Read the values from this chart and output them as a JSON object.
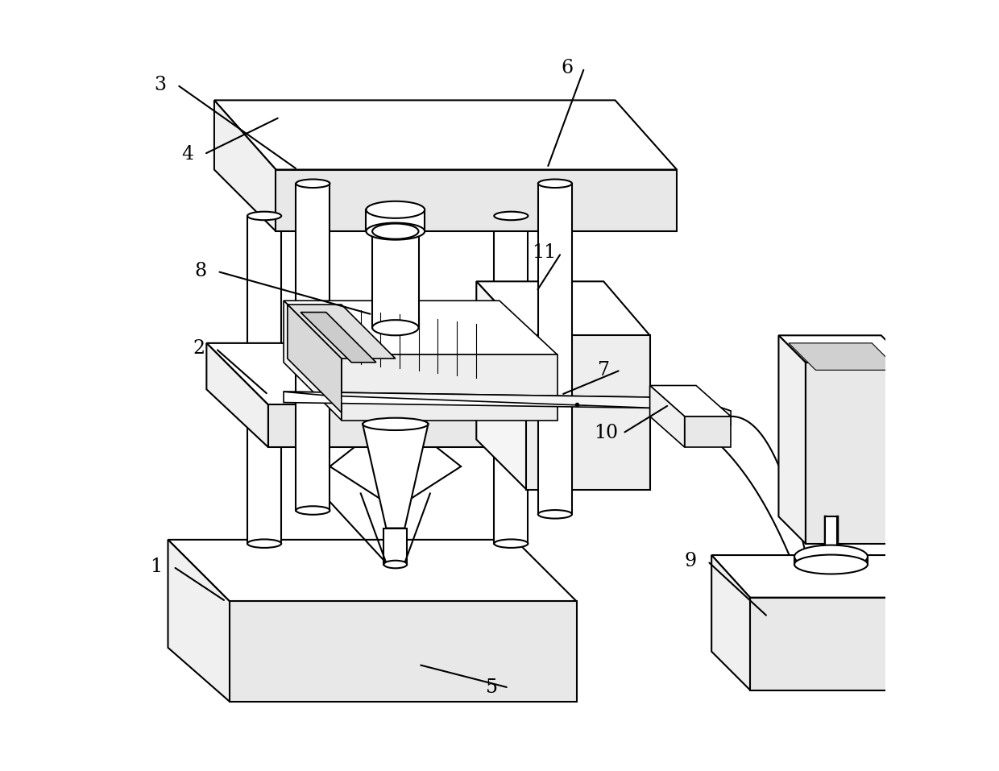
{
  "background_color": "#ffffff",
  "line_color": "#000000",
  "line_width": 1.5,
  "fig_width": 12.4,
  "fig_height": 9.57
}
